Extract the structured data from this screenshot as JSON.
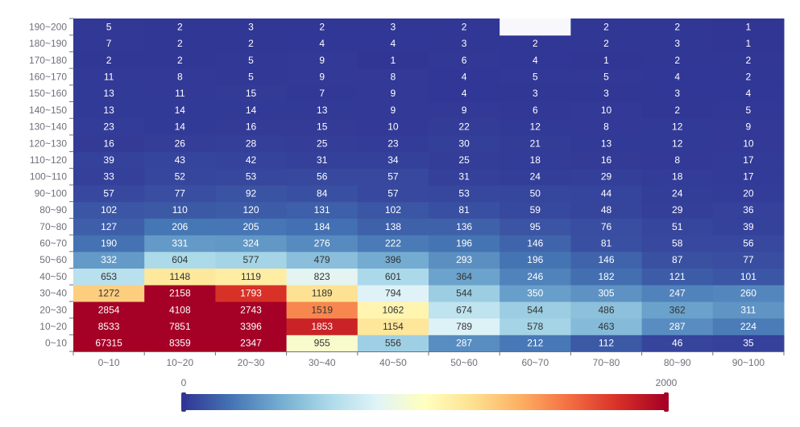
{
  "chart_data": {
    "type": "heatmap",
    "title": "",
    "xlabel": "",
    "ylabel": "",
    "x_categories": [
      "0~10",
      "10~20",
      "20~30",
      "30~40",
      "40~50",
      "50~60",
      "60~70",
      "70~80",
      "80~90",
      "90~100"
    ],
    "y_categories": [
      "0~10",
      "10~20",
      "20~30",
      "30~40",
      "40~50",
      "50~60",
      "60~70",
      "70~80",
      "80~90",
      "90~100",
      "100~110",
      "110~120",
      "120~130",
      "130~140",
      "140~150",
      "150~160",
      "160~170",
      "170~180",
      "180~190",
      "190~200"
    ],
    "values": [
      [
        67315,
        8359,
        2347,
        955,
        556,
        287,
        212,
        112,
        46,
        35
      ],
      [
        8533,
        7851,
        3396,
        1853,
        1154,
        789,
        578,
        463,
        287,
        224
      ],
      [
        2854,
        4108,
        2743,
        1519,
        1062,
        674,
        544,
        486,
        362,
        311
      ],
      [
        1272,
        2158,
        1793,
        1189,
        794,
        544,
        350,
        305,
        247,
        260
      ],
      [
        653,
        1148,
        1119,
        823,
        601,
        364,
        246,
        182,
        121,
        101
      ],
      [
        332,
        604,
        577,
        479,
        396,
        293,
        196,
        146,
        87,
        77
      ],
      [
        190,
        331,
        324,
        276,
        222,
        196,
        146,
        81,
        58,
        56
      ],
      [
        127,
        206,
        205,
        184,
        138,
        136,
        95,
        76,
        51,
        39
      ],
      [
        102,
        110,
        120,
        131,
        102,
        81,
        59,
        48,
        29,
        36
      ],
      [
        57,
        77,
        92,
        84,
        57,
        53,
        50,
        44,
        24,
        20
      ],
      [
        33,
        52,
        53,
        56,
        57,
        31,
        24,
        29,
        18,
        17
      ],
      [
        39,
        43,
        42,
        31,
        34,
        25,
        18,
        16,
        8,
        17
      ],
      [
        16,
        26,
        28,
        25,
        23,
        30,
        21,
        13,
        12,
        10
      ],
      [
        23,
        14,
        16,
        15,
        10,
        22,
        12,
        8,
        12,
        9
      ],
      [
        13,
        14,
        14,
        13,
        9,
        9,
        6,
        10,
        2,
        5
      ],
      [
        13,
        11,
        15,
        7,
        9,
        4,
        3,
        3,
        3,
        4
      ],
      [
        11,
        8,
        5,
        9,
        8,
        4,
        5,
        5,
        4,
        2
      ],
      [
        2,
        2,
        5,
        9,
        1,
        6,
        4,
        1,
        2,
        2
      ],
      [
        7,
        2,
        2,
        4,
        4,
        3,
        2,
        2,
        3,
        1
      ],
      [
        5,
        2,
        3,
        2,
        3,
        2,
        null,
        2,
        2,
        1
      ]
    ],
    "visual_map": {
      "min": 0,
      "max": 2000,
      "min_label": "0",
      "max_label": "2000"
    },
    "colors": [
      "#313695",
      "#4575b4",
      "#74add1",
      "#abd9e9",
      "#e0f3f8",
      "#ffffbf",
      "#fee090",
      "#fdae61",
      "#f46d43",
      "#d73027",
      "#a50026"
    ],
    "empty_cell_color": "#f8f8fc",
    "grid": false
  }
}
